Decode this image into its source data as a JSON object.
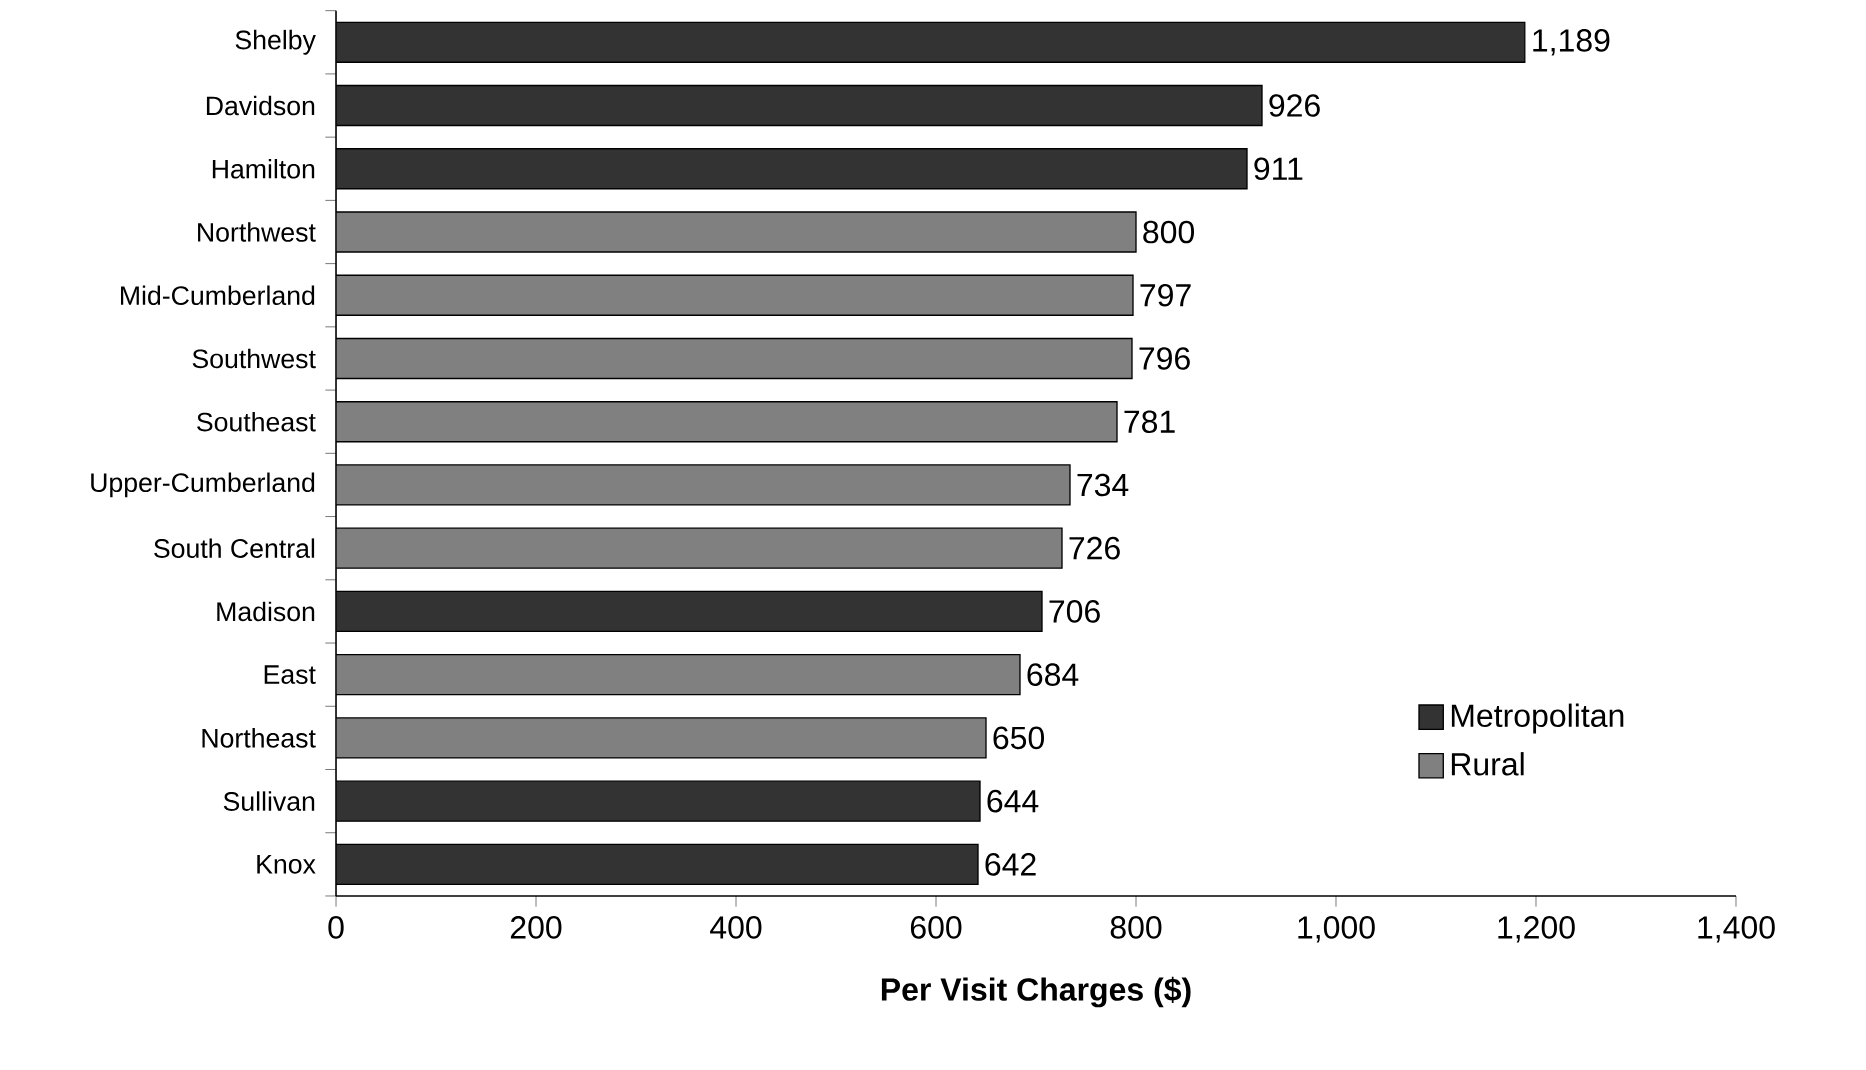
{
  "chart_data": {
    "type": "bar",
    "orientation": "horizontal",
    "xlabel": "Per Visit Charges ($)",
    "categories": [
      "Shelby",
      "Davidson",
      "Hamilton",
      "Northwest",
      "Mid-Cumberland",
      "Southwest",
      "Southeast",
      "Upper-Cumberland",
      "South Central",
      "Madison",
      "East",
      "Northeast",
      "Sullivan",
      "Knox"
    ],
    "series": [
      {
        "name": "Metropolitan",
        "color": "#333333",
        "values": [
          1189,
          926,
          911,
          null,
          null,
          null,
          null,
          null,
          null,
          706,
          null,
          null,
          644,
          642
        ],
        "value_labels": [
          "1,189",
          "926",
          "911",
          null,
          null,
          null,
          null,
          null,
          null,
          "706",
          null,
          null,
          "644",
          "642"
        ]
      },
      {
        "name": "Rural",
        "color": "#808080",
        "values": [
          null,
          null,
          null,
          800,
          797,
          796,
          781,
          734,
          726,
          null,
          684,
          650,
          null,
          null
        ],
        "value_labels": [
          null,
          null,
          null,
          "800",
          "797",
          "796",
          "781",
          "734",
          "726",
          null,
          "684",
          "650",
          null,
          null
        ]
      }
    ],
    "xlim": [
      0,
      1400
    ],
    "xticks": [
      0,
      200,
      400,
      600,
      800,
      {
        "value": 1000,
        "label": "1,000"
      },
      {
        "value": 1200,
        "label": "1,200"
      },
      {
        "value": 1400,
        "label": "1,400"
      }
    ],
    "legend": "bottom right",
    "grid": false
  }
}
